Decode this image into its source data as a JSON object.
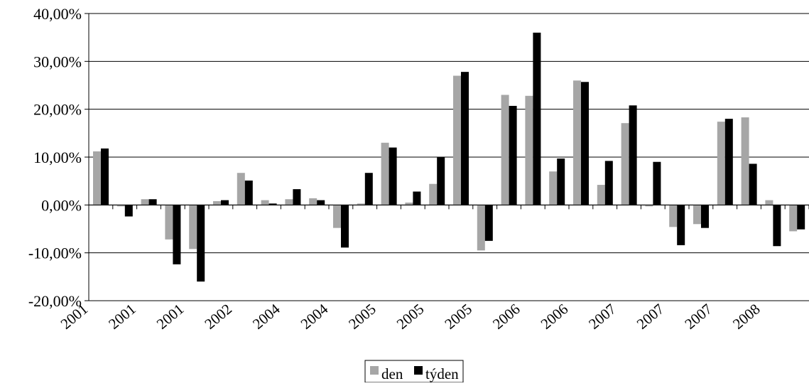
{
  "chart_data": {
    "type": "bar",
    "title": "",
    "xlabel": "",
    "ylabel": "",
    "ylim": [
      -20,
      40
    ],
    "y_ticks": [
      "-20,00%",
      "-10,00%",
      "0,00%",
      "10,00%",
      "20,00%",
      "30,00%",
      "40,00%"
    ],
    "grid": true,
    "legend_position": "bottom",
    "x_tick_labels": [
      "2001",
      "2001",
      "2001",
      "2002",
      "2004",
      "2004",
      "2005",
      "2005",
      "2005",
      "2006",
      "2006",
      "2007",
      "2007",
      "2007",
      "2008"
    ],
    "series": [
      {
        "name": "den",
        "color": "#a6a6a6",
        "values": [
          11.2,
          -0.3,
          1.2,
          -7.2,
          -9.2,
          0.8,
          6.7,
          1.0,
          1.2,
          1.4,
          -4.8,
          0.3,
          13.0,
          0.5,
          4.4,
          27.0,
          -9.5,
          23.0,
          22.8,
          7.0,
          26.0,
          4.2,
          17.1,
          -0.3,
          -4.6,
          -4.0,
          17.4,
          18.3,
          1.0,
          -5.5
        ]
      },
      {
        "name": "týden",
        "color": "#000000",
        "values": [
          11.8,
          -2.4,
          1.2,
          -12.4,
          -16.0,
          1.0,
          5.1,
          0.3,
          3.3,
          1.0,
          -8.9,
          6.7,
          12.0,
          2.8,
          10.0,
          27.8,
          -7.5,
          20.7,
          36.0,
          9.7,
          25.7,
          9.2,
          20.8,
          9.0,
          -8.4,
          -4.8,
          18.0,
          8.6,
          -8.6,
          -5.1
        ]
      }
    ]
  }
}
